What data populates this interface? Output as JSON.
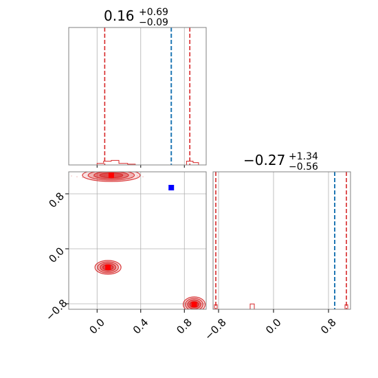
{
  "colors": {
    "contour_red": "#d62728",
    "quantile_red": "#d62728",
    "truth_blue": "#1f77b4",
    "marker_blue": "#0000ff",
    "marker_red": "#ff0000",
    "grid": "#b0b0b0",
    "frame": "#808080"
  },
  "chart_data": {
    "type": "corner",
    "param1": {
      "title": {
        "median": "0.16",
        "upper": "+0.69",
        "lower": "−0.09"
      },
      "range": [
        -0.26,
        1.0
      ],
      "ticks": [
        {
          "value": 0.0,
          "label": "0.0"
        },
        {
          "value": 0.4,
          "label": "0.4"
        },
        {
          "value": 0.8,
          "label": "0.8"
        }
      ],
      "quantiles": [
        0.07,
        0.85
      ],
      "truth": 0.68,
      "histogram": [
        {
          "x0": -0.26,
          "x1": 0.0,
          "h": 0.0
        },
        {
          "x0": 0.0,
          "x1": 0.06,
          "h": 0.01
        },
        {
          "x0": 0.06,
          "x1": 0.13,
          "h": 0.025
        },
        {
          "x0": 0.13,
          "x1": 0.2,
          "h": 0.03
        },
        {
          "x0": 0.2,
          "x1": 0.28,
          "h": 0.01
        },
        {
          "x0": 0.28,
          "x1": 0.35,
          "h": 0.005
        },
        {
          "x0": 0.35,
          "x1": 0.82,
          "h": 0.0
        },
        {
          "x0": 0.82,
          "x1": 0.88,
          "h": 0.025
        },
        {
          "x0": 0.88,
          "x1": 0.93,
          "h": 0.015
        },
        {
          "x0": 0.93,
          "x1": 1.0,
          "h": 0.0
        }
      ]
    },
    "param2": {
      "title": {
        "median": "−0.27",
        "upper": "+1.34",
        "lower": "−0.56"
      },
      "range": [
        -0.88,
        1.12
      ],
      "ticks": [
        {
          "value": -0.8,
          "label": "−0.8"
        },
        {
          "value": 0.0,
          "label": "0.0"
        },
        {
          "value": 0.8,
          "label": "0.8"
        }
      ],
      "quantiles": [
        -0.84,
        1.06
      ],
      "truth": 0.89,
      "histogram": [
        {
          "x0": -0.88,
          "x1": -0.86,
          "h": 0.0
        },
        {
          "x0": -0.86,
          "x1": -0.82,
          "h": 0.03
        },
        {
          "x0": -0.82,
          "x1": -0.34,
          "h": 0.0
        },
        {
          "x0": -0.34,
          "x1": -0.28,
          "h": 0.035
        },
        {
          "x0": -0.28,
          "x1": 1.04,
          "h": 0.0
        },
        {
          "x0": 1.04,
          "x1": 1.08,
          "h": 0.03
        },
        {
          "x0": 1.08,
          "x1": 1.12,
          "h": 0.0
        }
      ]
    },
    "joint": {
      "modes": [
        {
          "x": 0.13,
          "y": 1.07
        },
        {
          "x": 0.1,
          "y": -0.27
        },
        {
          "x": 0.89,
          "y": -0.81
        }
      ],
      "truth": {
        "x": 0.68,
        "y": 0.89
      },
      "grid": true
    }
  }
}
